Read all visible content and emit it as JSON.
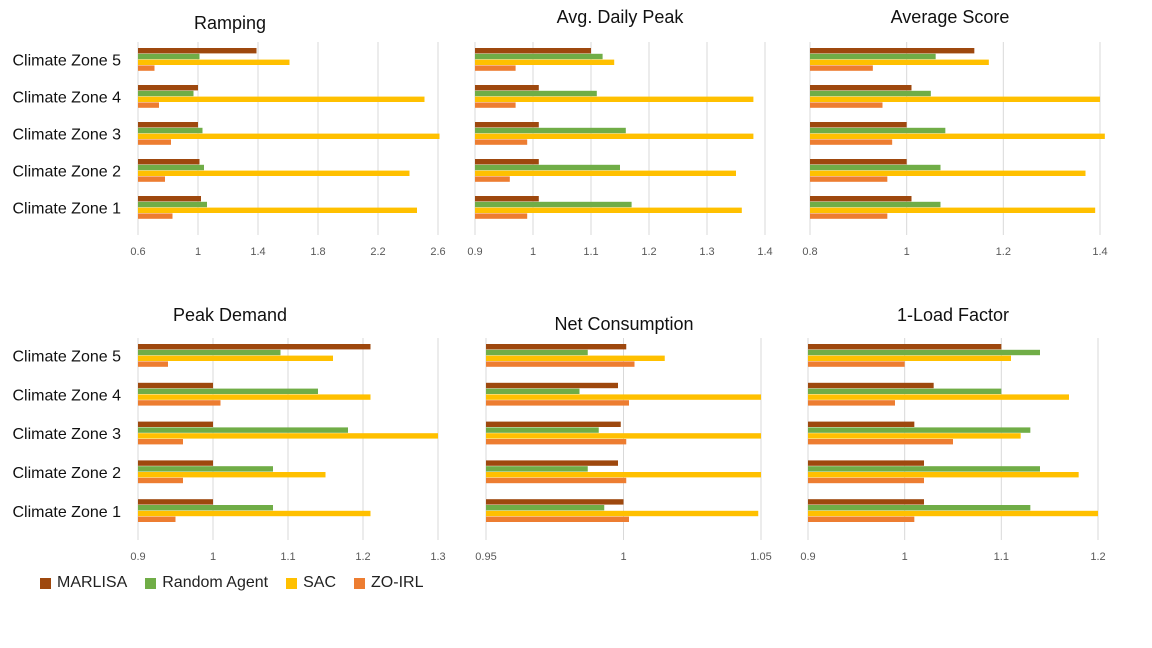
{
  "colors": {
    "MARLISA": "#9e480e",
    "Random Agent": "#70ad47",
    "SAC": "#ffc000",
    "ZO-IRL": "#ed7d31"
  },
  "legend": [
    "MARLISA",
    "Random Agent",
    "SAC",
    "ZO-IRL"
  ],
  "chart_data": [
    {
      "type": "bar",
      "orientation": "horizontal",
      "title": "Ramping",
      "categories": [
        "Climate Zone 5",
        "Climate Zone 4",
        "Climate Zone 3",
        "Climate Zone 2",
        "Climate Zone 1"
      ],
      "xlim": [
        0.6,
        2.6
      ],
      "ticks": [
        "0.6",
        "1",
        "1.4",
        "1.8",
        "2.2",
        "2.6"
      ],
      "grid": true,
      "series": [
        {
          "name": "MARLISA",
          "values": [
            1.39,
            1.0,
            1.0,
            1.01,
            1.02
          ]
        },
        {
          "name": "Random Agent",
          "values": [
            1.01,
            0.97,
            1.03,
            1.04,
            1.06
          ]
        },
        {
          "name": "SAC",
          "values": [
            1.61,
            2.51,
            2.61,
            2.41,
            2.46
          ]
        },
        {
          "name": "ZO-IRL",
          "values": [
            0.71,
            0.74,
            0.82,
            0.78,
            0.83
          ]
        }
      ]
    },
    {
      "type": "bar",
      "orientation": "horizontal",
      "title": "Avg. Daily Peak",
      "categories": [
        "Climate Zone 5",
        "Climate Zone 4",
        "Climate Zone 3",
        "Climate Zone 2",
        "Climate Zone 1"
      ],
      "xlim": [
        0.9,
        1.4
      ],
      "ticks": [
        "0.9",
        "1",
        "1.1",
        "1.2",
        "1.3",
        "1.4"
      ],
      "grid": true,
      "series": [
        {
          "name": "MARLISA",
          "values": [
            1.1,
            1.01,
            1.01,
            1.01,
            1.01
          ]
        },
        {
          "name": "Random Agent",
          "values": [
            1.12,
            1.11,
            1.16,
            1.15,
            1.17
          ]
        },
        {
          "name": "SAC",
          "values": [
            1.14,
            1.38,
            1.38,
            1.35,
            1.36
          ]
        },
        {
          "name": "ZO-IRL",
          "values": [
            0.97,
            0.97,
            0.99,
            0.96,
            0.99
          ]
        }
      ]
    },
    {
      "type": "bar",
      "orientation": "horizontal",
      "title": "Average Score",
      "categories": [
        "Climate Zone 5",
        "Climate Zone 4",
        "Climate Zone 3",
        "Climate Zone 2",
        "Climate Zone 1"
      ],
      "xlim": [
        0.8,
        1.4
      ],
      "ticks": [
        "0.8",
        "1",
        "1.2",
        "1.4"
      ],
      "grid": true,
      "series": [
        {
          "name": "MARLISA",
          "values": [
            1.14,
            1.01,
            1.0,
            1.0,
            1.01
          ]
        },
        {
          "name": "Random Agent",
          "values": [
            1.06,
            1.05,
            1.08,
            1.07,
            1.07
          ]
        },
        {
          "name": "SAC",
          "values": [
            1.17,
            1.4,
            1.41,
            1.37,
            1.39
          ]
        },
        {
          "name": "ZO-IRL",
          "values": [
            0.93,
            0.95,
            0.97,
            0.96,
            0.96
          ]
        }
      ]
    },
    {
      "type": "bar",
      "orientation": "horizontal",
      "title": "Peak Demand",
      "categories": [
        "Climate Zone 5",
        "Climate Zone 4",
        "Climate Zone 3",
        "Climate Zone 2",
        "Climate Zone 1"
      ],
      "xlim": [
        0.9,
        1.3
      ],
      "ticks": [
        "0.9",
        "1",
        "1.1",
        "1.2",
        "1.3"
      ],
      "grid": true,
      "series": [
        {
          "name": "MARLISA",
          "values": [
            1.21,
            1.0,
            1.0,
            1.0,
            1.0
          ]
        },
        {
          "name": "Random Agent",
          "values": [
            1.09,
            1.14,
            1.18,
            1.08,
            1.08
          ]
        },
        {
          "name": "SAC",
          "values": [
            1.16,
            1.21,
            1.3,
            1.15,
            1.21
          ]
        },
        {
          "name": "ZO-IRL",
          "values": [
            0.94,
            1.01,
            0.96,
            0.96,
            0.95
          ]
        }
      ]
    },
    {
      "type": "bar",
      "orientation": "horizontal",
      "title": "Net Consumption",
      "categories": [
        "Climate Zone 5",
        "Climate Zone 4",
        "Climate Zone 3",
        "Climate Zone 2",
        "Climate Zone 1"
      ],
      "xlim": [
        0.95,
        1.05
      ],
      "ticks": [
        "0.95",
        "1",
        "1.05"
      ],
      "grid": true,
      "series": [
        {
          "name": "MARLISA",
          "values": [
            1.001,
            0.998,
            0.999,
            0.998,
            1.0
          ]
        },
        {
          "name": "Random Agent",
          "values": [
            0.987,
            0.984,
            0.991,
            0.987,
            0.993
          ]
        },
        {
          "name": "SAC",
          "values": [
            1.015,
            1.05,
            1.05,
            1.05,
            1.049
          ]
        },
        {
          "name": "ZO-IRL",
          "values": [
            1.004,
            1.002,
            1.001,
            1.001,
            1.002
          ]
        }
      ]
    },
    {
      "type": "bar",
      "orientation": "horizontal",
      "title": "1-Load Factor",
      "categories": [
        "Climate Zone 5",
        "Climate Zone 4",
        "Climate Zone 3",
        "Climate Zone 2",
        "Climate Zone 1"
      ],
      "xlim": [
        0.9,
        1.2
      ],
      "ticks": [
        "0.9",
        "1",
        "1.1",
        "1.2"
      ],
      "grid": true,
      "series": [
        {
          "name": "MARLISA",
          "values": [
            1.1,
            1.03,
            1.01,
            1.02,
            1.02
          ]
        },
        {
          "name": "Random Agent",
          "values": [
            1.14,
            1.1,
            1.13,
            1.14,
            1.13
          ]
        },
        {
          "name": "SAC",
          "values": [
            1.11,
            1.17,
            1.12,
            1.18,
            1.2
          ]
        },
        {
          "name": "ZO-IRL",
          "values": [
            1.0,
            0.99,
            1.05,
            1.02,
            1.01
          ]
        }
      ]
    }
  ]
}
